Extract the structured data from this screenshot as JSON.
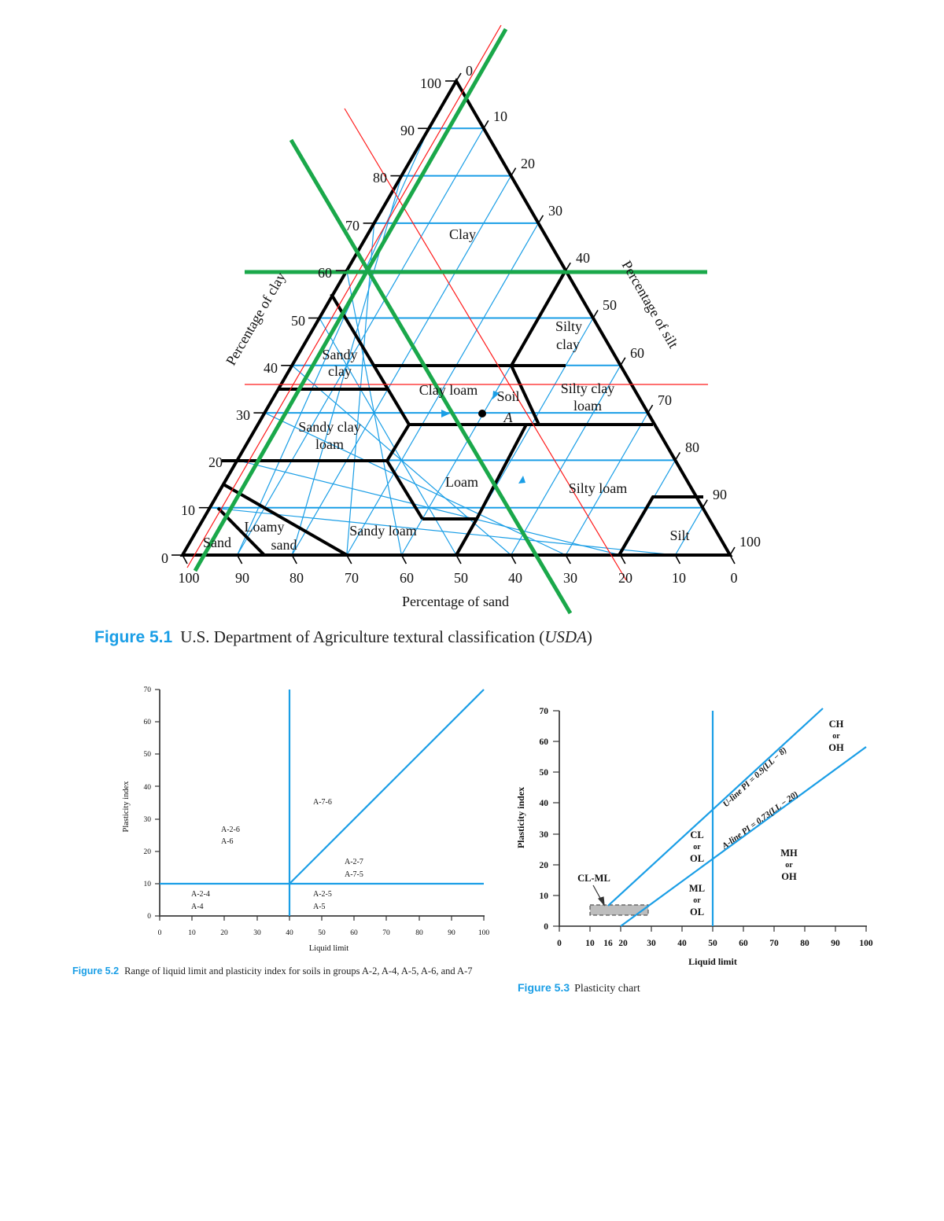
{
  "figures": {
    "fig51": {
      "number": "Figure 5.1",
      "caption": "U.S. Department of Agriculture textural classification (",
      "caption_italic": "USDA",
      "caption_end": ")"
    },
    "fig52": {
      "number": "Figure 5.2",
      "caption": "Range of liquid limit and plasticity index for soils in groups A-2, A-4, A-5, A-6, and A-7"
    },
    "fig53": {
      "number": "Figure 5.3",
      "caption": "Plasticity chart"
    }
  },
  "colors": {
    "grid_blue": "#1a9ee6",
    "boundary_black": "#000000",
    "annotation_green": "#1aa84a",
    "annotation_red": "#ff1a1a",
    "caption_blue": "#1a9ee6",
    "shade_gray": "#bdbdbd"
  },
  "chart_data": [
    {
      "type": "ternary",
      "title": "U.S. Department of Agriculture textural classification (USDA)",
      "axes": {
        "clay": {
          "label": "Percentage of clay",
          "ticks": [
            0,
            10,
            20,
            30,
            40,
            50,
            60,
            70,
            80,
            90,
            100
          ]
        },
        "silt": {
          "label": "Percentage of silt",
          "ticks": [
            0,
            10,
            20,
            30,
            40,
            50,
            60,
            70,
            80,
            90,
            100
          ]
        },
        "sand": {
          "label": "Percentage of sand",
          "ticks": [
            100,
            90,
            80,
            70,
            60,
            50,
            40,
            30,
            20,
            10,
            0
          ]
        }
      },
      "regions": [
        "Clay",
        "Silty clay",
        "Sandy clay",
        "Clay loam",
        "Silty clay loam",
        "Sandy clay loam",
        "Loam",
        "Silty loam",
        "Sandy loam",
        "Loamy sand",
        "Sand",
        "Silt"
      ],
      "annotated_point": {
        "label": "Soil A",
        "clay": 30,
        "sand": 40,
        "silt": 30
      },
      "overlay_lines": [
        {
          "color": "green",
          "description": "horizontal line at clay = 60"
        },
        {
          "color": "green",
          "description": "line parallel to left edge (silt ≈ 0)"
        },
        {
          "color": "green",
          "description": "line parallel to right edge through clay 60 / sand ≈ 33"
        },
        {
          "color": "red",
          "description": "horizontal line at clay ≈ 36"
        },
        {
          "color": "red",
          "description": "line parallel to left edge near silt ≈ 0"
        },
        {
          "color": "red",
          "description": "line parallel to right edge at sand ≈ 20"
        }
      ],
      "grid": true
    },
    {
      "type": "line",
      "title": "Range of liquid limit and plasticity index for soils in groups A-2, A-4, A-5, A-6, and A-7",
      "xlabel": "Liquid limit",
      "ylabel": "Plasticity index",
      "xlim": [
        0,
        100
      ],
      "ylim": [
        0,
        70
      ],
      "xticks": [
        0,
        10,
        20,
        30,
        40,
        50,
        60,
        70,
        80,
        90,
        100
      ],
      "yticks": [
        0,
        10,
        20,
        30,
        40,
        50,
        60,
        70
      ],
      "series": [
        {
          "name": "PI = 10",
          "x": [
            0,
            100
          ],
          "y": [
            10,
            10
          ]
        },
        {
          "name": "LL = 40",
          "x": [
            40,
            40
          ],
          "y": [
            0,
            70
          ]
        },
        {
          "name": "PI = LL - 30",
          "x": [
            40,
            100
          ],
          "y": [
            10,
            70
          ]
        }
      ],
      "annotations": [
        {
          "text": "A-2-4\nA-4",
          "x": 14,
          "y": 4
        },
        {
          "text": "A-2-6\nA-6",
          "x": 24,
          "y": 24
        },
        {
          "text": "A-7-6",
          "x": 55,
          "y": 33
        },
        {
          "text": "A-2-7\nA-7-5",
          "x": 65,
          "y": 15
        },
        {
          "text": "A-2-5\nA-5",
          "x": 54,
          "y": 4
        }
      ],
      "grid": false
    },
    {
      "type": "line",
      "title": "Plasticity chart",
      "xlabel": "Liquid limit",
      "ylabel": "Plasticity index",
      "xlim": [
        0,
        100
      ],
      "ylim": [
        0,
        70
      ],
      "xticks": [
        0,
        10,
        16,
        20,
        30,
        40,
        50,
        60,
        70,
        80,
        90,
        100
      ],
      "yticks": [
        0,
        10,
        20,
        30,
        40,
        50,
        60,
        70
      ],
      "series": [
        {
          "name": "U-line PI = 0.9(LL − 8)",
          "x": [
            16,
            86
          ],
          "y": [
            7.2,
            70.2
          ]
        },
        {
          "name": "A-line PI = 0.73(LL − 20)",
          "x": [
            20,
            100
          ],
          "y": [
            0,
            58.4
          ]
        },
        {
          "name": "LL = 50",
          "x": [
            50,
            50
          ],
          "y": [
            0,
            70
          ]
        }
      ],
      "shaded_region": {
        "label": "CL-ML",
        "x": [
          10,
          29
        ],
        "y": [
          4,
          7
        ]
      },
      "annotations": [
        {
          "text": "CL-ML",
          "x": 12,
          "y": 17
        },
        {
          "text": "CL\nor\nOL",
          "x": 45,
          "y": 27
        },
        {
          "text": "ML\nor\nOL",
          "x": 45,
          "y": 10
        },
        {
          "text": "MH\nor\nOH",
          "x": 75,
          "y": 20
        },
        {
          "text": "CH\nor\nOH",
          "x": 90,
          "y": 60
        },
        {
          "text": "U-line PI = 0.9(LL − 8)",
          "x": 62,
          "y": 48
        },
        {
          "text": "A-line PI = 0.73(LL − 20)",
          "x": 70,
          "y": 33
        }
      ],
      "grid": false
    }
  ],
  "ternary_labels": {
    "clay_axis": "Percentage of clay",
    "silt_axis": "Percentage of silt",
    "sand_axis": "Percentage of sand",
    "clay": "Clay",
    "silty_clay_1": "Silty",
    "silty_clay_2": "clay",
    "sandy_clay_1": "Sandy",
    "sandy_clay_2": "clay",
    "clay_loam": "Clay loam",
    "soil_1": "Soil",
    "soil_2": "A",
    "silty_clay_loam_1": "Silty clay",
    "silty_clay_loam_2": "loam",
    "sandy_clay_loam_1": "Sandy clay",
    "sandy_clay_loam_2": "loam",
    "loam": "Loam",
    "silty_loam": "Silty loam",
    "sandy_loam": "Sandy loam",
    "loamy_sand_1": "Loamy",
    "loamy_sand_2": "sand",
    "sand": "Sand",
    "silt": "Silt",
    "left_ticks": [
      "0",
      "10",
      "20",
      "30",
      "40",
      "50",
      "60",
      "70",
      "80",
      "90",
      "100"
    ],
    "right_ticks": [
      "0",
      "10",
      "20",
      "30",
      "40",
      "50",
      "60",
      "70",
      "80",
      "90",
      "100"
    ],
    "bottom_ticks": [
      "100",
      "90",
      "80",
      "70",
      "60",
      "50",
      "40",
      "30",
      "20",
      "10",
      "0"
    ]
  },
  "fig52_labels": {
    "xlabel": "Liquid limit",
    "ylabel": "Plasticity index",
    "xticks": [
      "0",
      "10",
      "20",
      "30",
      "40",
      "50",
      "60",
      "70",
      "80",
      "90",
      "100"
    ],
    "yticks": [
      "0",
      "10",
      "20",
      "30",
      "40",
      "50",
      "60",
      "70"
    ],
    "a24": "A-2-4",
    "a4": "A-4",
    "a26": "A-2-6",
    "a6": "A-6",
    "a76": "A-7-6",
    "a27": "A-2-7",
    "a75": "A-7-5",
    "a25": "A-2-5",
    "a5": "A-5"
  },
  "fig53_labels": {
    "xlabel": "Liquid limit",
    "ylabel": "Plasticity index",
    "xticks": [
      "0",
      "10",
      "16",
      "20",
      "30",
      "40",
      "50",
      "60",
      "70",
      "80",
      "90",
      "100"
    ],
    "yticks": [
      "0",
      "10",
      "20",
      "30",
      "40",
      "50",
      "60",
      "70"
    ],
    "clml": "CL-ML",
    "cl": "CL",
    "or1": "or",
    "ol1": "OL",
    "ml": "ML",
    "or2": "or",
    "ol2": "OL",
    "mh": "MH",
    "or3": "or",
    "oh1": "OH",
    "ch": "CH",
    "or4": "or",
    "oh2": "OH",
    "uline": "U-line PI = 0.9(LL − 8)",
    "aline": "A-line PI = 0.73(LL − 20)"
  }
}
